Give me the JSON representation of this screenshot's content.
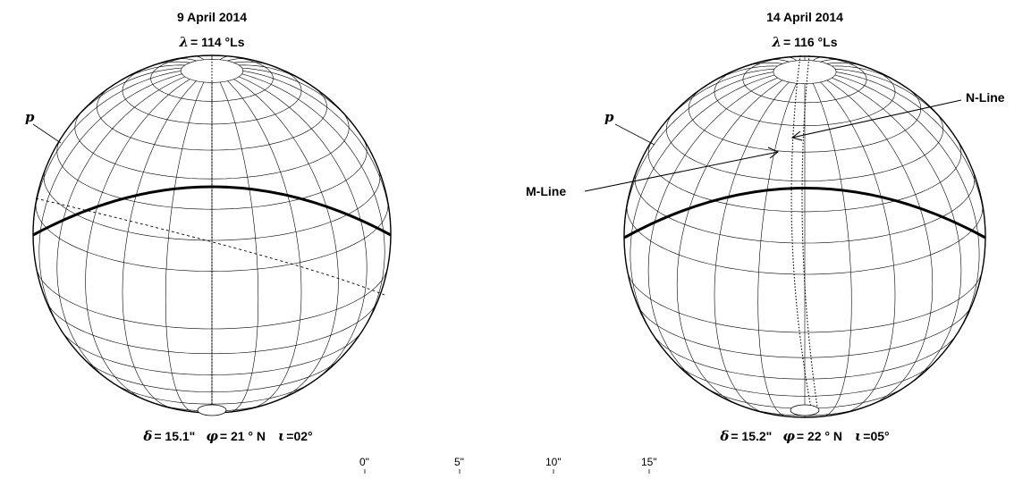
{
  "globes": [
    {
      "date": "9 April 2014",
      "lambda_symbol": "λ",
      "lambda_value": "= 114 °Ls",
      "pole_label": "p",
      "delta_symbol": "δ",
      "delta_value": "= 15.1\"",
      "phi_symbol": "φ",
      "phi_value": "= 21 ° N",
      "iota_symbol": "ι",
      "iota_value": "=02°"
    },
    {
      "date": "14 April 2014",
      "lambda_symbol": "λ",
      "lambda_value": "= 116 °Ls",
      "pole_label": "p",
      "delta_symbol": "δ",
      "delta_value": "= 15.2\"",
      "phi_symbol": "φ",
      "phi_value": "= 22 ° N",
      "iota_symbol": "ι",
      "iota_value": "=05°",
      "callouts": {
        "n_line": "N-Line",
        "m_line": "M-Line"
      }
    }
  ],
  "scale": {
    "ticks": [
      "0\"",
      "5\"",
      "10\"",
      "15\""
    ]
  }
}
